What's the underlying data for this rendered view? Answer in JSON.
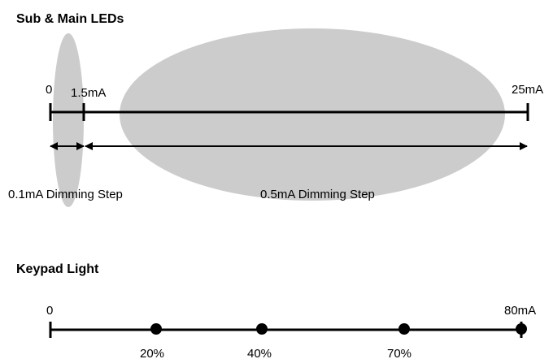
{
  "sub_main": {
    "heading": "Sub & Main LEDs",
    "start_label": "0",
    "break_label": "1.5mA",
    "end_label": "25mA",
    "step_small_label": "0.1mA Dimming Step",
    "step_large_label": "0.5mA Dimming Step",
    "highlight_color": "#cccccc"
  },
  "keypad": {
    "heading": "Keypad Light",
    "start_label": "0",
    "end_label": "80mA",
    "markers": [
      {
        "label": "20%"
      },
      {
        "label": "40%"
      },
      {
        "label": "70%"
      }
    ]
  }
}
